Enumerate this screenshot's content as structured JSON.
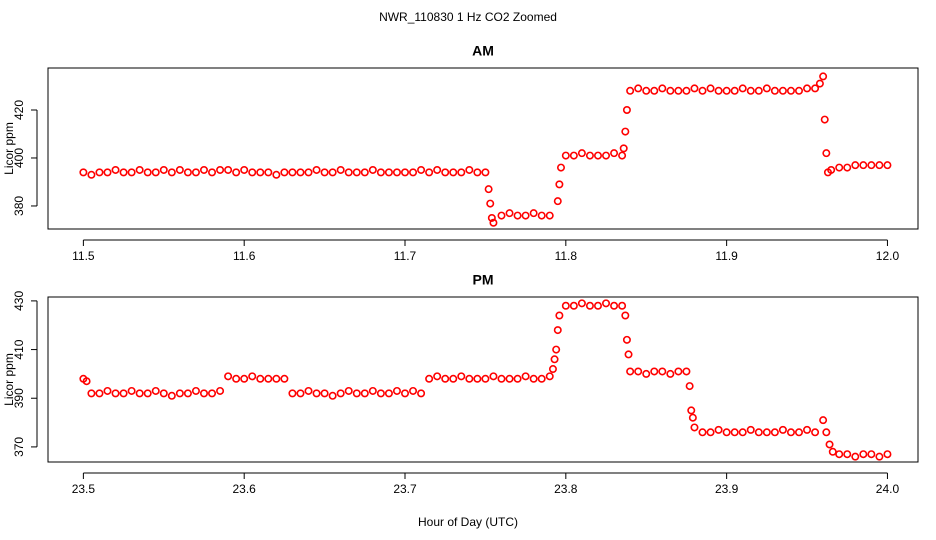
{
  "title": "NWR_110830  1 Hz CO2 Zoomed",
  "x_label": "Hour of Day (UTC)",
  "chart_data": [
    {
      "type": "scatter",
      "title": "AM",
      "y_label": "Licor ppm",
      "color": "#ff0000",
      "xlim": [
        11.478,
        12.019
      ],
      "ylim": [
        370.4,
        437.5
      ],
      "xticks": [
        11.5,
        11.6,
        11.7,
        11.8,
        11.9,
        {
          "value": 12,
          "label": "12.0"
        }
      ],
      "yticks": [
        380,
        400,
        420
      ],
      "x": [
        11.5,
        11.505,
        11.51,
        11.515,
        11.52,
        11.525,
        11.53,
        11.535,
        11.54,
        11.545,
        11.55,
        11.555,
        11.56,
        11.565,
        11.57,
        11.575,
        11.58,
        11.585,
        11.59,
        11.595,
        11.6,
        11.605,
        11.61,
        11.615,
        11.62,
        11.625,
        11.63,
        11.635,
        11.64,
        11.645,
        11.65,
        11.655,
        11.66,
        11.665,
        11.67,
        11.675,
        11.68,
        11.685,
        11.69,
        11.695,
        11.7,
        11.705,
        11.71,
        11.715,
        11.72,
        11.725,
        11.73,
        11.735,
        11.74,
        11.745,
        11.75,
        11.752,
        11.753,
        11.754,
        11.755,
        11.76,
        11.765,
        11.77,
        11.775,
        11.78,
        11.785,
        11.79,
        11.795,
        11.796,
        11.797,
        11.8,
        11.805,
        11.81,
        11.815,
        11.82,
        11.825,
        11.83,
        11.835,
        11.836,
        11.837,
        11.838,
        11.84,
        11.845,
        11.85,
        11.855,
        11.86,
        11.865,
        11.87,
        11.875,
        11.88,
        11.885,
        11.89,
        11.895,
        11.9,
        11.905,
        11.91,
        11.915,
        11.92,
        11.925,
        11.93,
        11.935,
        11.94,
        11.945,
        11.95,
        11.955,
        11.958,
        11.96,
        11.961,
        11.962,
        11.963,
        11.965,
        11.97,
        11.975,
        11.98,
        11.985,
        11.99,
        11.995,
        12.0
      ],
      "values": [
        394,
        393,
        394,
        394,
        395,
        394,
        394,
        395,
        394,
        394,
        395,
        394,
        395,
        394,
        394,
        395,
        394,
        395,
        395,
        394,
        395,
        394,
        394,
        394,
        393,
        394,
        394,
        394,
        394,
        395,
        394,
        394,
        395,
        394,
        394,
        394,
        395,
        394,
        394,
        394,
        394,
        394,
        395,
        394,
        395,
        394,
        394,
        394,
        395,
        394,
        394,
        387,
        381,
        375,
        373,
        376,
        377,
        376,
        376,
        377,
        376,
        376,
        382,
        389,
        396,
        401,
        401,
        402,
        401,
        401,
        401,
        402,
        401,
        404,
        411,
        420,
        428,
        429,
        428,
        428,
        429,
        428,
        428,
        428,
        429,
        428,
        429,
        428,
        428,
        428,
        429,
        428,
        428,
        429,
        428,
        428,
        428,
        428,
        429,
        429,
        431,
        434,
        416,
        402,
        394,
        395,
        396,
        396,
        397,
        397,
        397,
        397,
        397
      ]
    },
    {
      "type": "scatter",
      "title": "PM",
      "y_label": "Licor ppm",
      "color": "#ff0000",
      "xlim": [
        23.478,
        24.019
      ],
      "ylim": [
        363.8,
        431.6
      ],
      "xticks": [
        23.5,
        23.6,
        23.7,
        23.8,
        23.9,
        {
          "value": 24,
          "label": "24.0"
        }
      ],
      "yticks": [
        370,
        390,
        410,
        430
      ],
      "x": [
        23.5,
        23.502,
        23.505,
        23.51,
        23.515,
        23.52,
        23.525,
        23.53,
        23.535,
        23.54,
        23.545,
        23.55,
        23.555,
        23.56,
        23.565,
        23.57,
        23.575,
        23.58,
        23.585,
        23.59,
        23.595,
        23.6,
        23.605,
        23.61,
        23.615,
        23.62,
        23.625,
        23.63,
        23.635,
        23.64,
        23.645,
        23.65,
        23.655,
        23.66,
        23.665,
        23.67,
        23.675,
        23.68,
        23.685,
        23.69,
        23.695,
        23.7,
        23.705,
        23.71,
        23.715,
        23.72,
        23.725,
        23.73,
        23.735,
        23.74,
        23.745,
        23.75,
        23.755,
        23.76,
        23.765,
        23.77,
        23.775,
        23.78,
        23.785,
        23.79,
        23.792,
        23.793,
        23.794,
        23.795,
        23.796,
        23.8,
        23.805,
        23.81,
        23.815,
        23.82,
        23.825,
        23.83,
        23.835,
        23.837,
        23.838,
        23.839,
        23.84,
        23.845,
        23.85,
        23.855,
        23.86,
        23.865,
        23.87,
        23.875,
        23.877,
        23.878,
        23.879,
        23.88,
        23.885,
        23.89,
        23.895,
        23.9,
        23.905,
        23.91,
        23.915,
        23.92,
        23.925,
        23.93,
        23.935,
        23.94,
        23.945,
        23.95,
        23.955,
        23.96,
        23.962,
        23.964,
        23.966,
        23.97,
        23.975,
        23.98,
        23.985,
        23.99,
        23.995,
        24.0
      ],
      "values": [
        398,
        397,
        392,
        392,
        393,
        392,
        392,
        393,
        392,
        392,
        393,
        392,
        391,
        392,
        392,
        393,
        392,
        392,
        393,
        399,
        398,
        398,
        399,
        398,
        398,
        398,
        398,
        392,
        392,
        393,
        392,
        392,
        391,
        392,
        393,
        392,
        392,
        393,
        392,
        392,
        393,
        392,
        393,
        392,
        398,
        399,
        398,
        398,
        399,
        398,
        398,
        398,
        399,
        398,
        398,
        398,
        399,
        398,
        398,
        399,
        402,
        406,
        410,
        418,
        424,
        428,
        428,
        429,
        428,
        428,
        429,
        428,
        428,
        424,
        414,
        408,
        401,
        401,
        400,
        401,
        401,
        400,
        401,
        401,
        395,
        385,
        382,
        378,
        376,
        376,
        377,
        376,
        376,
        376,
        377,
        376,
        376,
        376,
        377,
        376,
        376,
        377,
        376,
        381,
        376,
        371,
        368,
        367,
        367,
        366,
        367,
        367,
        366,
        367
      ]
    }
  ]
}
